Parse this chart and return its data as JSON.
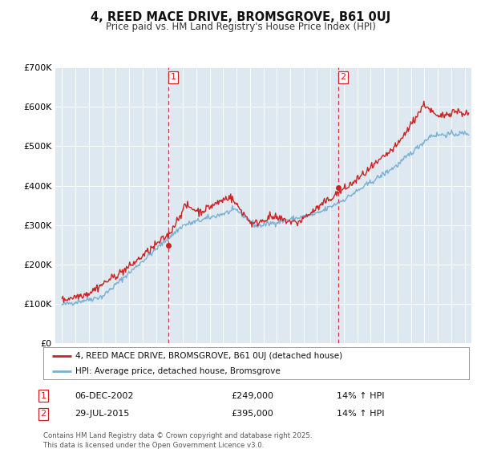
{
  "title": "4, REED MACE DRIVE, BROMSGROVE, B61 0UJ",
  "subtitle": "Price paid vs. HM Land Registry's House Price Index (HPI)",
  "ylim": [
    0,
    700000
  ],
  "yticks": [
    0,
    100000,
    200000,
    300000,
    400000,
    500000,
    600000,
    700000
  ],
  "ytick_labels": [
    "£0",
    "£100K",
    "£200K",
    "£300K",
    "£400K",
    "£500K",
    "£600K",
    "£700K"
  ],
  "background_color": "#ffffff",
  "plot_bg_color": "#dde8f0",
  "grid_color": "#ffffff",
  "hpi_color": "#7ab0d4",
  "price_color": "#cc2222",
  "sale1_date": 2002.92,
  "sale1_price": 249000,
  "sale2_date": 2015.57,
  "sale2_price": 395000,
  "legend_label_price": "4, REED MACE DRIVE, BROMSGROVE, B61 0UJ (detached house)",
  "legend_label_hpi": "HPI: Average price, detached house, Bromsgrove",
  "annotation1_date_str": "06-DEC-2002",
  "annotation1_price_str": "£249,000",
  "annotation1_hpi_str": "14% ↑ HPI",
  "annotation2_date_str": "29-JUL-2015",
  "annotation2_price_str": "£395,000",
  "annotation2_hpi_str": "14% ↑ HPI",
  "footer": "Contains HM Land Registry data © Crown copyright and database right 2025.\nThis data is licensed under the Open Government Licence v3.0.",
  "xmin": 1994.5,
  "xmax": 2025.5
}
